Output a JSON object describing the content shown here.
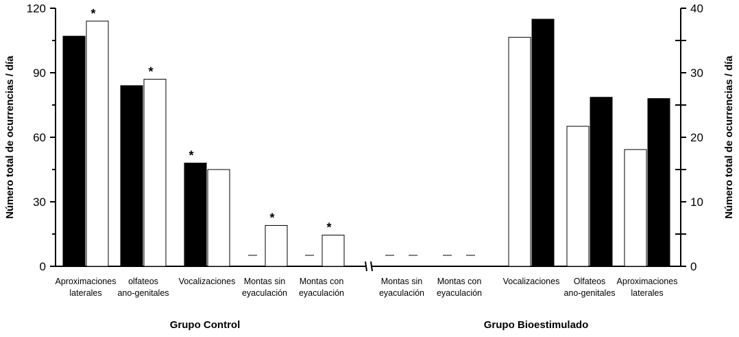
{
  "chart_data": {
    "type": "bar",
    "left_axis": {
      "title": "Número total de ocurrencias / día",
      "ylim": [
        0,
        120
      ],
      "ticks": [
        "0",
        "30",
        "60",
        "90",
        "120"
      ]
    },
    "right_axis": {
      "title": "Número total de ocurrencias / día",
      "ylim": [
        0,
        40
      ],
      "ticks": [
        "0",
        "10",
        "20",
        "30",
        "40"
      ]
    },
    "groups": [
      {
        "name": "Grupo Control",
        "axis": "left",
        "categories": [
          {
            "label": [
              "Aproximaciones",
              "laterales"
            ],
            "filled": 107,
            "open": 114,
            "star": "*"
          },
          {
            "label": [
              "olfateos",
              "ano-genitales"
            ],
            "filled": 84,
            "open": 87,
            "star": "*"
          },
          {
            "label": [
              "Vocalizaciones"
            ],
            "filled": 48,
            "open": 45,
            "star": "*"
          },
          {
            "label": [
              "Montas sin",
              "eyaculación"
            ],
            "filled": 0,
            "open": 19,
            "star": "*"
          },
          {
            "label": [
              "Montas con",
              "eyaculación"
            ],
            "filled": 0,
            "open": 14.5,
            "star": "*"
          }
        ]
      },
      {
        "name": "Grupo Bioestimulado",
        "axis": "right",
        "categories": [
          {
            "label": [
              "Montas sin",
              "eyaculación"
            ],
            "open": 0,
            "filled": 0,
            "star": ""
          },
          {
            "label": [
              "Montas con",
              "eyaculación"
            ],
            "open": 0,
            "filled": 0,
            "star": ""
          },
          {
            "label": [
              "Vocalizaciones"
            ],
            "open": 35.5,
            "filled": 38.3,
            "star": ""
          },
          {
            "label": [
              "Olfateos",
              "ano-genitales"
            ],
            "open": 21.7,
            "filled": 26.2,
            "star": ""
          },
          {
            "label": [
              "Aproximaciones",
              "laterales"
            ],
            "open": 18.1,
            "filled": 26,
            "star": ""
          }
        ]
      }
    ],
    "series": [
      {
        "name": "filled",
        "color": "#000000"
      },
      {
        "name": "open",
        "color": "#ffffff"
      }
    ]
  }
}
